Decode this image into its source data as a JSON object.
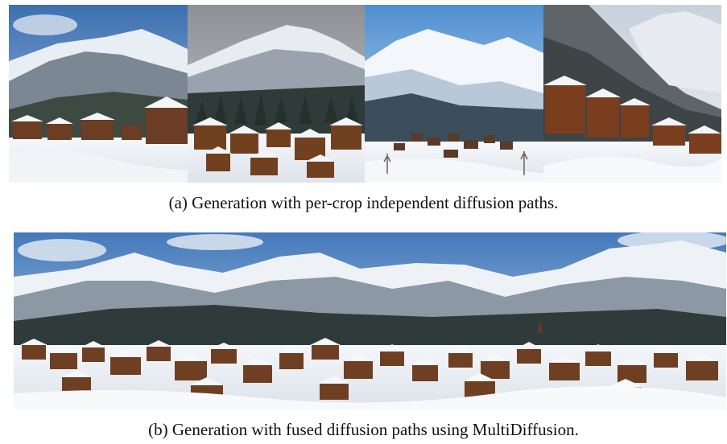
{
  "figure": {
    "panel_a": {
      "caption": "(a) Generation with per-crop independent diffusion paths.",
      "image": "snowy-mountain-village-four-independent-crops"
    },
    "panel_b": {
      "caption": "(b) Generation with fused diffusion paths using MultiDiffusion.",
      "image": "snowy-mountain-village-seamless-panorama"
    }
  }
}
